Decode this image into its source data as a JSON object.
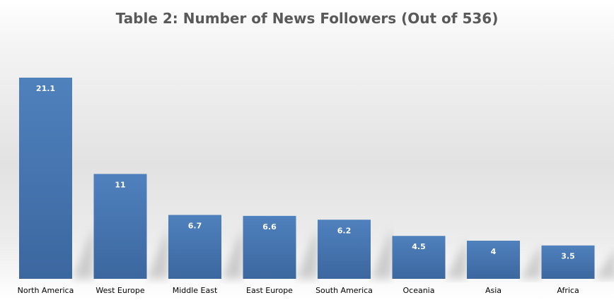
{
  "chart_data": {
    "type": "bar",
    "title": "Table 2: Number of News Followers (Out of 536)",
    "categories": [
      "North America",
      "West Europe",
      "Middle East",
      "East Europe",
      "South America",
      "Oceania",
      "Asia",
      "Africa"
    ],
    "values": [
      21.1,
      11,
      6.7,
      6.6,
      6.2,
      4.5,
      4,
      3.5
    ],
    "value_labels": [
      "21.1",
      "11",
      "6.7",
      "6.6",
      "6.2",
      "4.5",
      "4",
      "3.5"
    ],
    "xlabel": "",
    "ylabel": "",
    "ylim": [
      0,
      21.1
    ],
    "grid": false,
    "legend": "none",
    "data_labels": "inside-top",
    "colors": {
      "bar_top": "#4f81bd",
      "bar_bottom": "#3c679f",
      "title": "#595959",
      "label": "#000000",
      "data_label": "#ffffff"
    }
  }
}
